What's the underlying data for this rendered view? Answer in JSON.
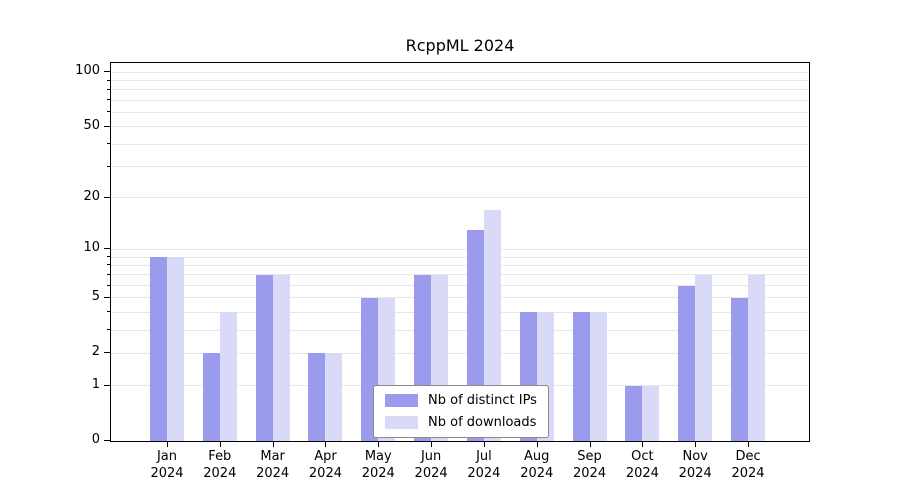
{
  "chart_data": {
    "type": "bar",
    "title": "RcppML 2024",
    "categories": [
      "Jan\n2024",
      "Feb\n2024",
      "Mar\n2024",
      "Apr\n2024",
      "May\n2024",
      "Jun\n2024",
      "Jul\n2024",
      "Aug\n2024",
      "Sep\n2024",
      "Oct\n2024",
      "Nov\n2024",
      "Dec\n2024"
    ],
    "series": [
      {
        "name": "Nb of distinct IPs",
        "color": "#9b9bee",
        "values": [
          9,
          2,
          7,
          2,
          5,
          7,
          13,
          4,
          4,
          1,
          6,
          5
        ]
      },
      {
        "name": "Nb of downloads",
        "color": "#d9d9f8",
        "values": [
          9,
          4,
          7,
          2,
          5,
          7,
          17,
          4,
          4,
          1,
          7,
          7
        ]
      }
    ],
    "xlabel": "",
    "ylabel": "",
    "yscale": "log1p",
    "yticks": [
      0,
      1,
      2,
      5,
      10,
      20,
      50,
      100
    ],
    "minor_gridlines": [
      3,
      4,
      6,
      7,
      8,
      9,
      30,
      40,
      60,
      70,
      80,
      90
    ],
    "ylim": [
      0,
      112
    ],
    "grid": "horizontal",
    "legend_position": "bottom-center-inside"
  }
}
